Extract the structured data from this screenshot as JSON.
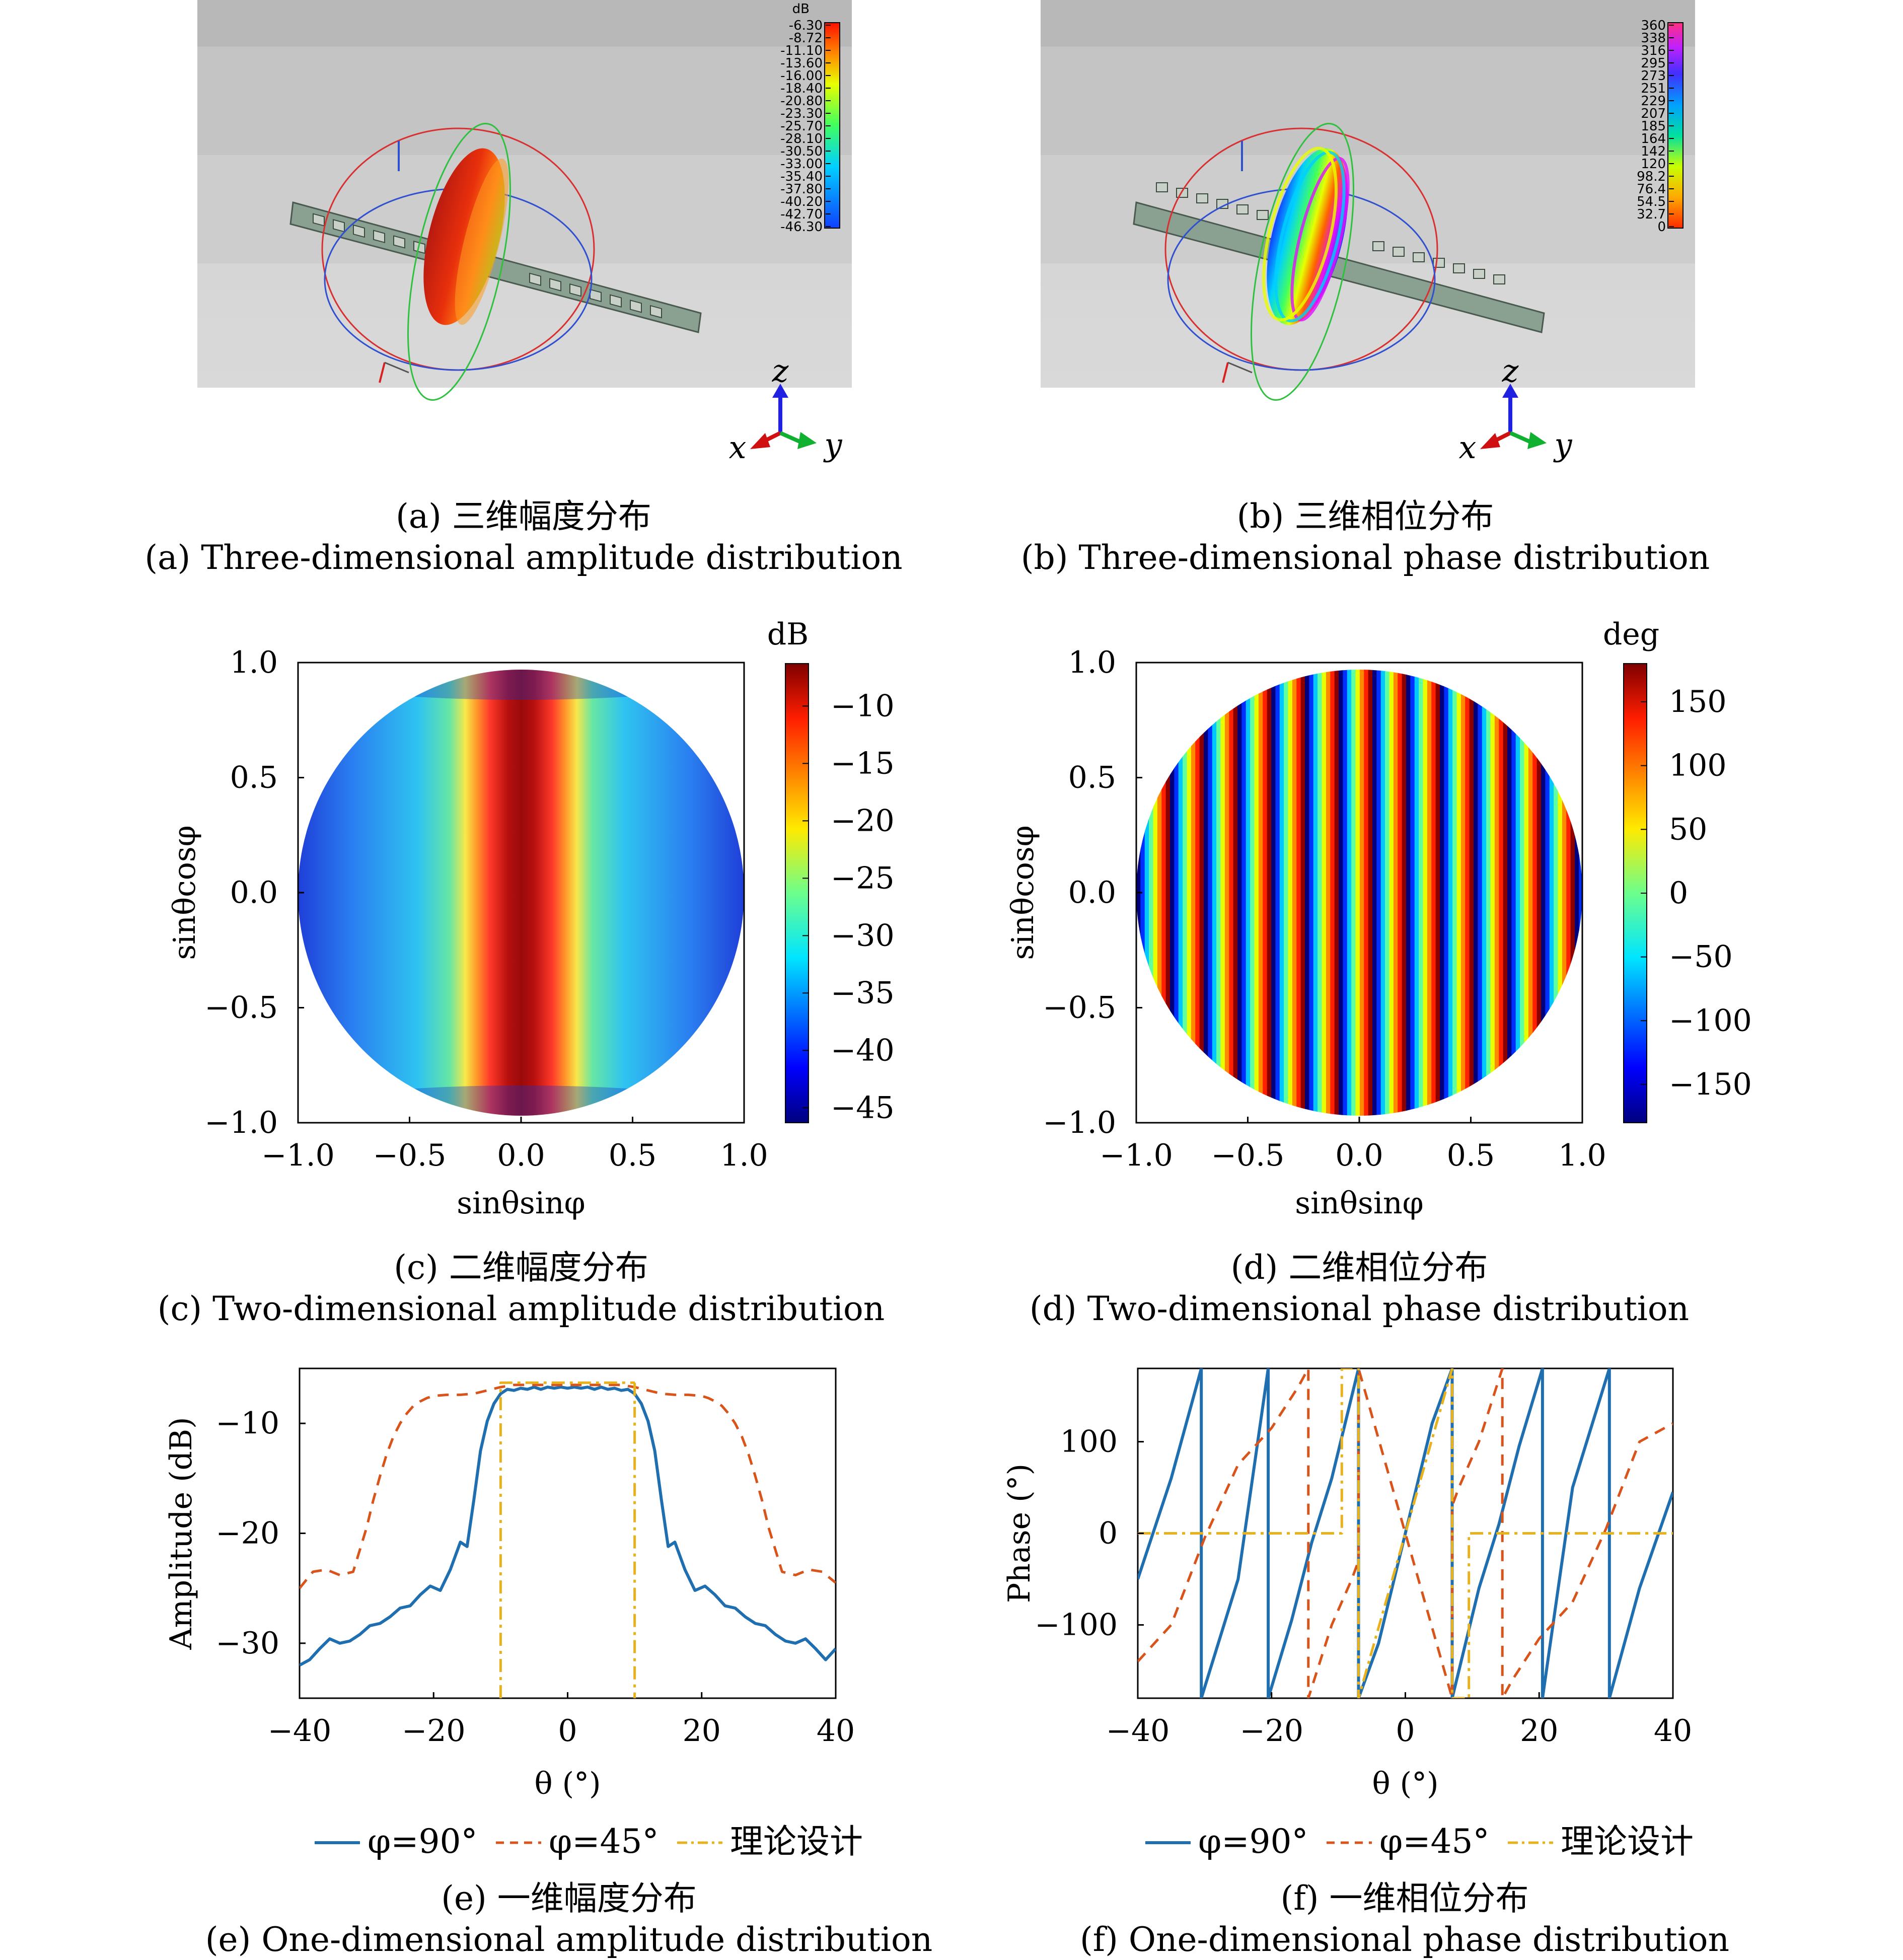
{
  "panels": {
    "a": {
      "caption_cn": "(a) 三维幅度分布",
      "caption_en": "(a) Three-dimensional amplitude distribution",
      "colorbar": {
        "unit": "dB",
        "ticks": [
          "-6.30",
          "-8.72",
          "-11.10",
          "-13.60",
          "-16.00",
          "-18.40",
          "-20.80",
          "-23.30",
          "-25.70",
          "-28.10",
          "-30.50",
          "-33.00",
          "-35.40",
          "-37.80",
          "-40.20",
          "-42.70",
          "-46.30"
        ]
      },
      "axes_triad": {
        "x": "x",
        "y": "y",
        "z": "z"
      }
    },
    "b": {
      "caption_cn": "(b) 三维相位分布",
      "caption_en": "(b) Three-dimensional phase distribution",
      "colorbar": {
        "ticks": [
          "360",
          "338",
          "316",
          "295",
          "273",
          "251",
          "229",
          "207",
          "185",
          "164",
          "142",
          "120",
          "98.2",
          "76.4",
          "54.5",
          "32.7",
          "0"
        ]
      },
      "axes_triad": {
        "x": "x",
        "y": "y",
        "z": "z"
      }
    },
    "c": {
      "caption_cn": "(c) 二维幅度分布",
      "caption_en": "(c) Two-dimensional amplitude distribution",
      "colorbar_unit": "dB"
    },
    "d": {
      "caption_cn": "(d) 二维相位分布",
      "caption_en": "(d) Two-dimensional phase distribution",
      "colorbar_unit": "deg"
    },
    "e": {
      "caption_cn": "(e) 一维幅度分布",
      "caption_en": "(e) One-dimensional amplitude distribution"
    },
    "f": {
      "caption_cn": "(f) 一维相位分布",
      "caption_en": "(f) One-dimensional phase distribution"
    }
  },
  "legend": [
    "φ=90°",
    "φ=45°",
    "理论设计"
  ],
  "colors": {
    "phi90": "#1f6fb0",
    "phi45": "#d9541a",
    "theory": "#e8b21e"
  },
  "chart_data": [
    {
      "id": "c",
      "type": "heatmap",
      "xlabel": "sinθsinφ",
      "ylabel": "sinθcosφ",
      "xlim": [
        -1,
        1
      ],
      "ylim": [
        -1,
        1
      ],
      "xticks": [
        "−1.0",
        "−0.5",
        "0.0",
        "0.5",
        "1.0"
      ],
      "yticks": [
        "1.0",
        "0.5",
        "0.0",
        "−0.5",
        "−1.0"
      ],
      "colorbar_label": "dB",
      "colorbar_range": [
        -46.3,
        -6.3
      ],
      "colorbar_ticks": [
        "−10",
        "−15",
        "−20",
        "−25",
        "−30",
        "−35",
        "−40",
        "−45"
      ],
      "colorbar_tick_values": [
        -10,
        -15,
        -20,
        -25,
        -30,
        -35,
        -40,
        -45
      ],
      "colormap": "jet"
    },
    {
      "id": "d",
      "type": "heatmap",
      "xlabel": "sinθsinφ",
      "ylabel": "sinθcosφ",
      "xlim": [
        -1,
        1
      ],
      "ylim": [
        -1,
        1
      ],
      "xticks": [
        "−1.0",
        "−0.5",
        "0.0",
        "0.5",
        "1.0"
      ],
      "yticks": [
        "1.0",
        "0.5",
        "0.0",
        "−0.5",
        "−1.0"
      ],
      "colorbar_label": "deg",
      "colorbar_range": [
        -180,
        180
      ],
      "colorbar_ticks": [
        "150",
        "100",
        "50",
        "0",
        "−50",
        "−100",
        "−150"
      ],
      "colorbar_tick_values": [
        150,
        100,
        50,
        0,
        -50,
        -100,
        -150
      ],
      "colormap": "jet"
    },
    {
      "id": "e",
      "type": "line",
      "xlabel": "θ (°)",
      "ylabel": "Amplitude (dB)",
      "xlim": [
        -40,
        40
      ],
      "ylim": [
        -35,
        -5
      ],
      "xticks": [
        "−40",
        "−20",
        "0",
        "20",
        "40"
      ],
      "xtick_values": [
        -40,
        -20,
        0,
        20,
        40
      ],
      "yticks": [
        "−10",
        "−20",
        "−30"
      ],
      "ytick_values": [
        -10,
        -20,
        -30
      ],
      "series": [
        {
          "name": "φ=90°",
          "x": [
            -40,
            -38.5,
            -37,
            -35.5,
            -34,
            -32.5,
            -31,
            -29.5,
            -28,
            -26.5,
            -25,
            -23.5,
            -22,
            -20.5,
            -19,
            -17.5,
            -16,
            -15,
            -14,
            -13,
            -12,
            -11,
            -10,
            -9,
            -8,
            -7,
            -6,
            -5,
            -4,
            -3,
            -2,
            -1,
            0,
            1,
            2,
            3,
            4,
            5,
            6,
            7,
            8,
            9,
            10,
            11,
            12,
            13,
            14,
            15,
            16,
            17.5,
            19,
            20.5,
            22,
            23.5,
            25,
            26.5,
            28,
            29.5,
            31,
            32.5,
            34,
            35.5,
            37,
            38.5,
            40
          ],
          "y": [
            -32,
            -31.5,
            -30.5,
            -29.6,
            -30,
            -29.8,
            -29.2,
            -28.4,
            -28.2,
            -27.6,
            -26.8,
            -26.6,
            -25.6,
            -24.8,
            -25.2,
            -23.3,
            -20.8,
            -21.2,
            -17,
            -12.5,
            -9.8,
            -8.2,
            -7.3,
            -6.9,
            -7.0,
            -6.8,
            -6.9,
            -6.7,
            -6.9,
            -6.7,
            -6.8,
            -6.7,
            -6.8,
            -6.7,
            -6.8,
            -6.7,
            -6.9,
            -6.7,
            -6.9,
            -6.8,
            -7.0,
            -6.9,
            -7.3,
            -8.2,
            -9.8,
            -12.5,
            -17,
            -21.2,
            -20.8,
            -23.3,
            -25.2,
            -24.8,
            -25.6,
            -26.6,
            -26.8,
            -27.6,
            -28.2,
            -28.4,
            -29.2,
            -29.8,
            -30,
            -29.6,
            -30.5,
            -31.5,
            -30.5
          ]
        },
        {
          "name": "φ=45°",
          "x": [
            -40,
            -38,
            -36,
            -34,
            -32,
            -31,
            -30,
            -29,
            -28,
            -27,
            -26,
            -25,
            -24,
            -23,
            -22,
            -21,
            -20,
            -19,
            -18,
            -17,
            -16,
            -15,
            -14,
            -12,
            -10,
            -8,
            -6,
            -4,
            -2,
            0,
            2,
            4,
            6,
            8,
            10,
            12,
            14,
            15,
            16,
            17,
            18,
            19,
            20,
            21,
            22,
            23,
            24,
            25,
            26,
            27,
            28,
            29,
            30,
            31,
            32,
            34,
            36,
            38,
            40
          ],
          "y": [
            -25,
            -23.5,
            -23.3,
            -23.8,
            -23.5,
            -21.5,
            -19.5,
            -17,
            -14.8,
            -12.8,
            -11.2,
            -10,
            -9.1,
            -8.4,
            -8.0,
            -7.7,
            -7.5,
            -7.45,
            -7.4,
            -7.4,
            -7.4,
            -7.35,
            -7.3,
            -7.0,
            -6.7,
            -6.5,
            -6.5,
            -6.5,
            -6.5,
            -6.5,
            -6.5,
            -6.5,
            -6.5,
            -6.5,
            -6.7,
            -7.0,
            -7.3,
            -7.35,
            -7.4,
            -7.4,
            -7.4,
            -7.45,
            -7.5,
            -7.7,
            -8.0,
            -8.4,
            -9.1,
            -10,
            -11.2,
            -12.8,
            -14.8,
            -17,
            -19.5,
            -21.5,
            -23.5,
            -23.8,
            -23.3,
            -23.5,
            -24.5
          ]
        },
        {
          "name": "理论设计",
          "x": [
            -10,
            -10,
            -10,
            10,
            10,
            10
          ],
          "y": [
            -35,
            -6.3,
            -6.3,
            -6.3,
            -6.3,
            -35
          ]
        }
      ]
    },
    {
      "id": "f",
      "type": "line",
      "xlabel": "θ (°)",
      "ylabel": "Phase (°)",
      "xlim": [
        -40,
        40
      ],
      "ylim": [
        -180,
        180
      ],
      "xticks": [
        "−40",
        "−20",
        "0",
        "20",
        "40"
      ],
      "xtick_values": [
        -40,
        -20,
        0,
        20,
        40
      ],
      "yticks": [
        "100",
        "0",
        "−100"
      ],
      "ytick_values": [
        100,
        0,
        -100
      ],
      "series": [
        {
          "name": "φ=90°",
          "x": [
            -40,
            -35,
            -30.5,
            -30.5,
            -25,
            -20.5,
            -20.5,
            -17,
            -14,
            -11,
            -8,
            -7,
            -7,
            -4,
            0,
            4,
            7,
            7,
            8,
            11,
            14,
            17,
            20.5,
            20.5,
            25,
            30.5,
            30.5,
            35,
            40
          ],
          "y": [
            -50,
            60,
            180,
            -180,
            -50,
            180,
            -180,
            -95,
            -10,
            60,
            150,
            180,
            -180,
            -120,
            0,
            120,
            180,
            -180,
            -150,
            -60,
            10,
            95,
            180,
            -180,
            50,
            180,
            -180,
            -60,
            45
          ]
        },
        {
          "name": "φ=45°",
          "x": [
            -40,
            -35,
            -30,
            -25,
            -20,
            -16,
            -14.5,
            -14.5,
            -11,
            -8,
            -7,
            -7,
            0,
            7,
            7,
            8,
            11,
            14.5,
            14.5,
            16,
            20,
            25,
            30,
            35,
            40
          ],
          "y": [
            -140,
            -100,
            -5,
            75,
            115,
            160,
            180,
            -180,
            -100,
            -50,
            -30,
            180,
            0,
            -180,
            30,
            50,
            100,
            180,
            -180,
            -160,
            -115,
            -75,
            5,
            100,
            120
          ]
        },
        {
          "name": "理论设计",
          "x": [
            -40,
            -9.5,
            -9.5,
            -7,
            -7,
            7,
            7,
            9.5,
            9.5,
            40
          ],
          "y": [
            0,
            0,
            180,
            180,
            -180,
            180,
            -180,
            -180,
            0,
            0
          ]
        }
      ]
    }
  ]
}
